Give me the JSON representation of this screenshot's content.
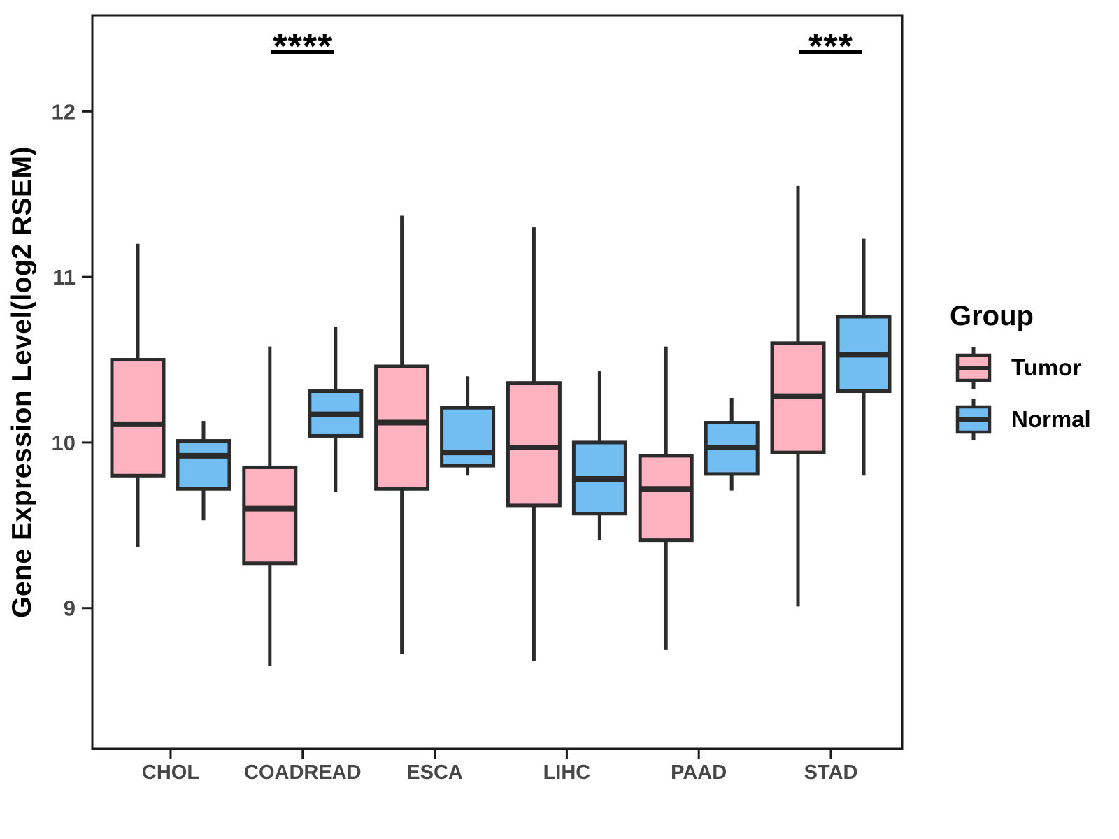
{
  "chart_data": {
    "type": "boxplot",
    "title": "",
    "xlabel": "",
    "ylabel": "Gene Expression Level(log2 RSEM)",
    "categories": [
      "CHOL",
      "COADREAD",
      "ESCA",
      "LIHC",
      "PAAD",
      "STAD"
    ],
    "y_ticks": [
      9,
      10,
      11,
      12
    ],
    "ylim": [
      8.15,
      12.58
    ],
    "grid": "off",
    "legend_position": "right",
    "legend": {
      "title": "Group"
    },
    "series": [
      {
        "name": "Tumor",
        "color": "#FFB3C1",
        "boxes": [
          {
            "category": "CHOL",
            "whisker_low": 9.37,
            "q1": 9.8,
            "median": 10.11,
            "q3": 10.5,
            "whisker_high": 11.2
          },
          {
            "category": "COADREAD",
            "whisker_low": 8.65,
            "q1": 9.27,
            "median": 9.6,
            "q3": 9.85,
            "whisker_high": 10.58
          },
          {
            "category": "ESCA",
            "whisker_low": 8.72,
            "q1": 9.72,
            "median": 10.12,
            "q3": 10.46,
            "whisker_high": 11.37
          },
          {
            "category": "LIHC",
            "whisker_low": 8.68,
            "q1": 9.62,
            "median": 9.97,
            "q3": 10.36,
            "whisker_high": 11.3
          },
          {
            "category": "PAAD",
            "whisker_low": 8.75,
            "q1": 9.41,
            "median": 9.72,
            "q3": 9.92,
            "whisker_high": 10.58
          },
          {
            "category": "STAD",
            "whisker_low": 9.01,
            "q1": 9.94,
            "median": 10.28,
            "q3": 10.6,
            "whisker_high": 11.55
          }
        ]
      },
      {
        "name": "Normal",
        "color": "#72BEF2",
        "boxes": [
          {
            "category": "CHOL",
            "whisker_low": 9.53,
            "q1": 9.72,
            "median": 9.92,
            "q3": 10.01,
            "whisker_high": 10.13
          },
          {
            "category": "COADREAD",
            "whisker_low": 9.7,
            "q1": 10.04,
            "median": 10.17,
            "q3": 10.31,
            "whisker_high": 10.7
          },
          {
            "category": "ESCA",
            "whisker_low": 9.8,
            "q1": 9.86,
            "median": 9.94,
            "q3": 10.21,
            "whisker_high": 10.4
          },
          {
            "category": "LIHC",
            "whisker_low": 9.41,
            "q1": 9.57,
            "median": 9.78,
            "q3": 10.0,
            "whisker_high": 10.43
          },
          {
            "category": "PAAD",
            "whisker_low": 9.71,
            "q1": 9.81,
            "median": 9.97,
            "q3": 10.12,
            "whisker_high": 10.27
          },
          {
            "category": "STAD",
            "whisker_low": 9.8,
            "q1": 10.31,
            "median": 10.53,
            "q3": 10.76,
            "whisker_high": 11.23
          }
        ]
      }
    ],
    "annotations": [
      {
        "category": "COADREAD",
        "label": "****"
      },
      {
        "category": "STAD",
        "label": "***"
      }
    ],
    "colors": {
      "box_stroke": "#2b2b2b",
      "panel_border": "#1a1a1a",
      "tick_text": "#474747",
      "annotation": "#000000"
    }
  }
}
